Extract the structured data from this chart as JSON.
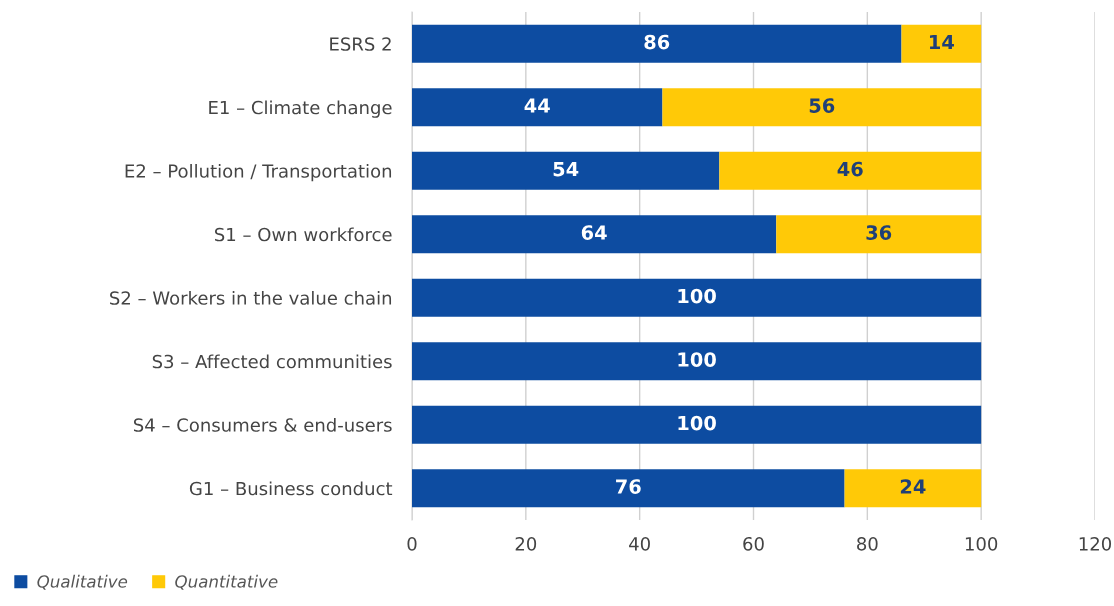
{
  "chart_data": {
    "type": "bar",
    "orientation": "horizontal",
    "stacked": true,
    "categories": [
      "ESRS 2",
      "E1 – Climate change",
      "E2 – Pollution / Transportation",
      "S1 – Own workforce",
      "S2 – Workers in the value chain",
      "S3 – Affected communities",
      "S4 – Consumers & end-users",
      "G1 – Business conduct"
    ],
    "series": [
      {
        "name": "Qualitative",
        "color": "#0d4ca1",
        "values": [
          86,
          44,
          54,
          64,
          100,
          100,
          100,
          76
        ]
      },
      {
        "name": "Quantitative",
        "color": "#ffc907",
        "values": [
          14,
          56,
          46,
          36,
          null,
          null,
          null,
          24
        ]
      }
    ],
    "xlim": [
      0,
      120
    ],
    "xticks": [
      0,
      20,
      40,
      60,
      80,
      100,
      120
    ],
    "grid": "x",
    "legend": "bottom left",
    "data_labels": true
  }
}
